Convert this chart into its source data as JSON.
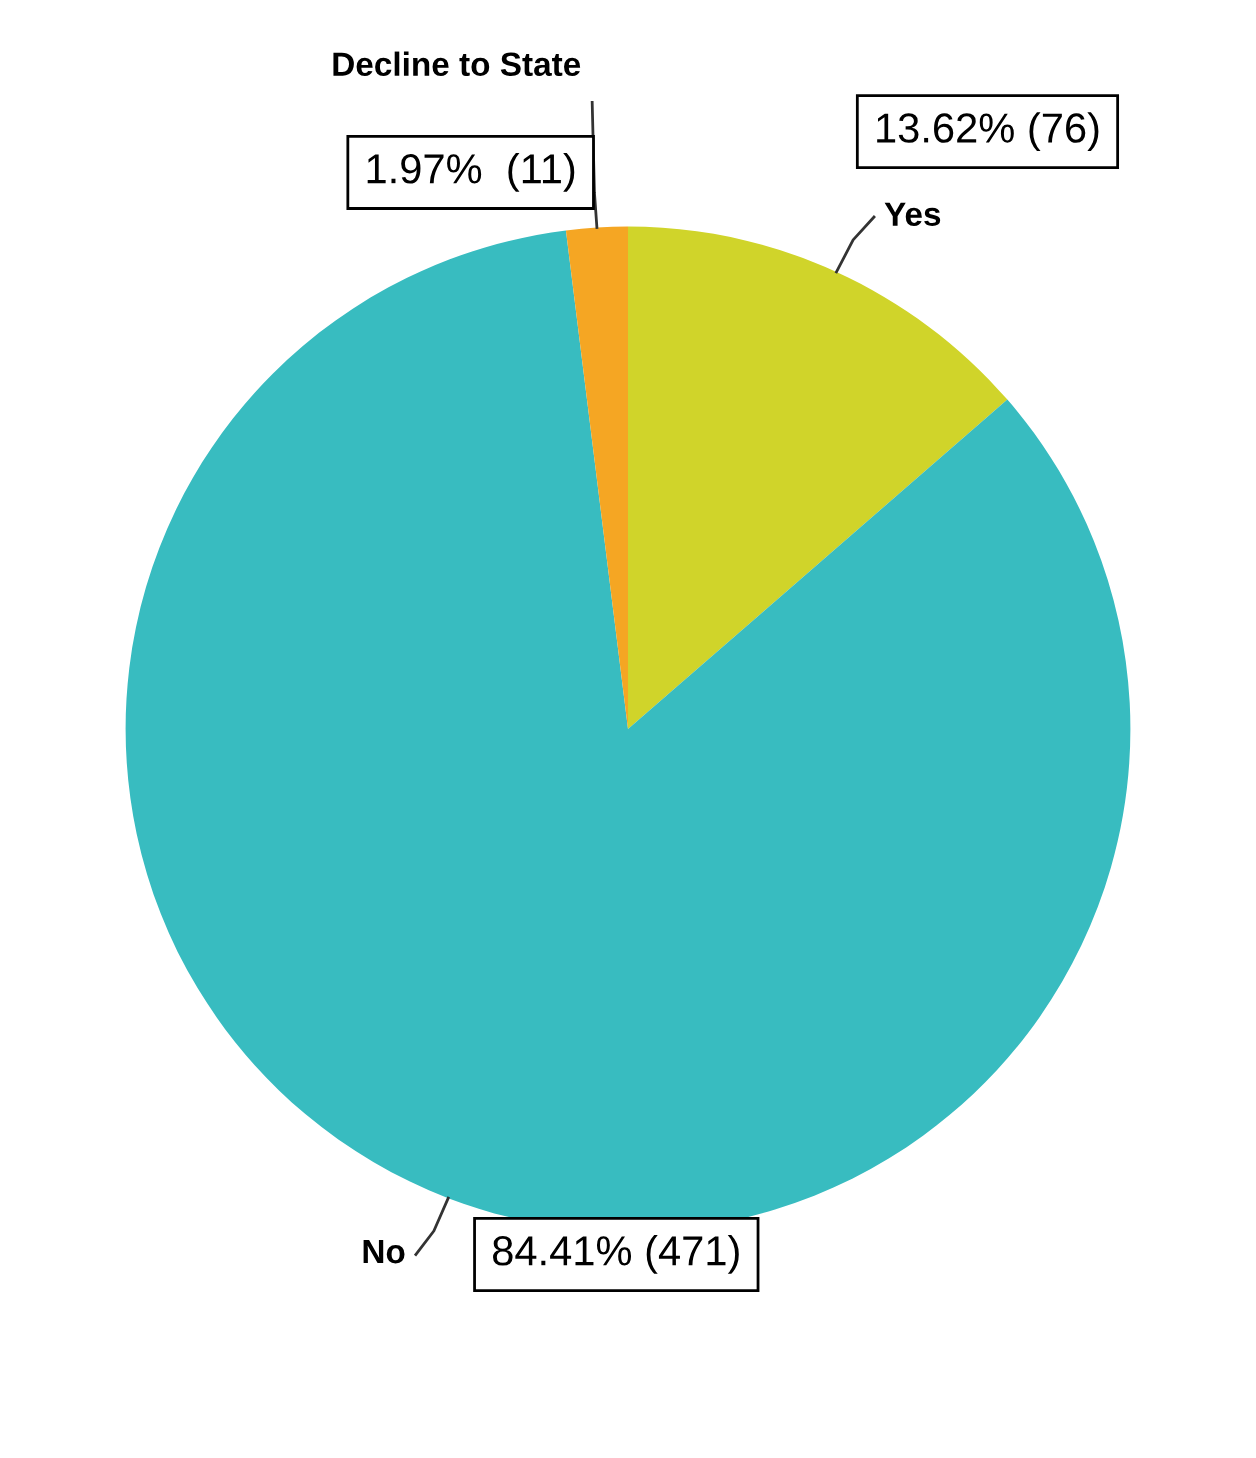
{
  "chart_data": {
    "type": "pie",
    "categories": [
      "Yes",
      "No",
      "Decline to State"
    ],
    "values": [
      76,
      471,
      11
    ],
    "colors": [
      "#d0d42a",
      "#38bcc0",
      "#f5a623"
    ],
    "value_labels": [
      "13.62% (76)",
      "84.41% (471)",
      "1.97%  (11)"
    ]
  }
}
